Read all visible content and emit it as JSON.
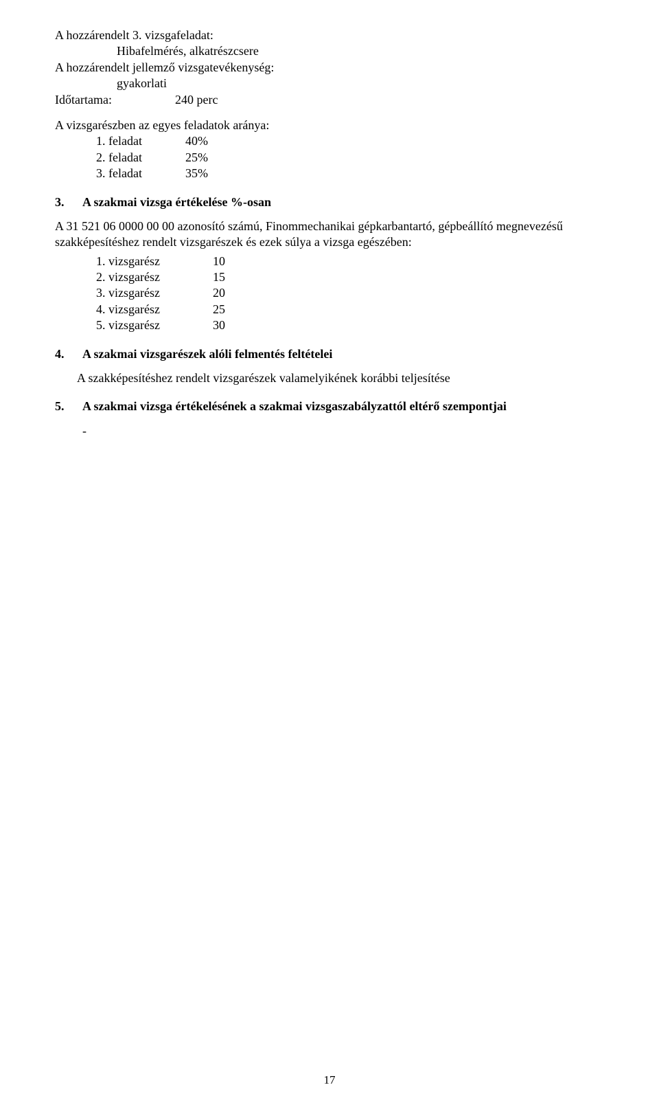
{
  "task3": {
    "heading": "A hozzárendelt 3. vizsgafeladat:",
    "title": "Hibafelmérés, alkatrészcsere",
    "activity_label": "A hozzárendelt jellemző vizsgatevékenység:",
    "activity_value": "gyakorlati",
    "duration_label": "Időtartama:",
    "duration_value": "240 perc"
  },
  "ratios": {
    "heading": "A vizsgarészben az egyes feladatok aránya:",
    "rows": [
      {
        "ord": "1. feladat",
        "val": "40%"
      },
      {
        "ord": "2. feladat",
        "val": "25%"
      },
      {
        "ord": "3. feladat",
        "val": "35%"
      }
    ]
  },
  "section3": {
    "num": "3.",
    "heading": "A szakmai vizsga értékelése %-osan",
    "para": "A 31 521 06 0000 00 00 azonosító számú, Finommechanikai gépkarbantartó, gépbeállító megnevezésű szakképesítéshez rendelt vizsgarészek és ezek súlya a vizsga egészében:",
    "parts": [
      {
        "name": "1. vizsgarész",
        "val": "10"
      },
      {
        "name": "2. vizsgarész",
        "val": "15"
      },
      {
        "name": "3. vizsgarész",
        "val": "20"
      },
      {
        "name": "4. vizsgarész",
        "val": "25"
      },
      {
        "name": "5. vizsgarész",
        "val": "30"
      }
    ]
  },
  "section4": {
    "num": "4.",
    "heading": "A szakmai vizsgarészek alóli felmentés feltételei",
    "body": "A szakképesítéshez rendelt vizsgarészek valamelyikének korábbi teljesítése"
  },
  "section5": {
    "num": "5.",
    "heading": "A szakmai vizsga értékelésének a szakmai vizsgaszabályzattól eltérő szempontjai",
    "dash": "-"
  },
  "page_number": "17"
}
